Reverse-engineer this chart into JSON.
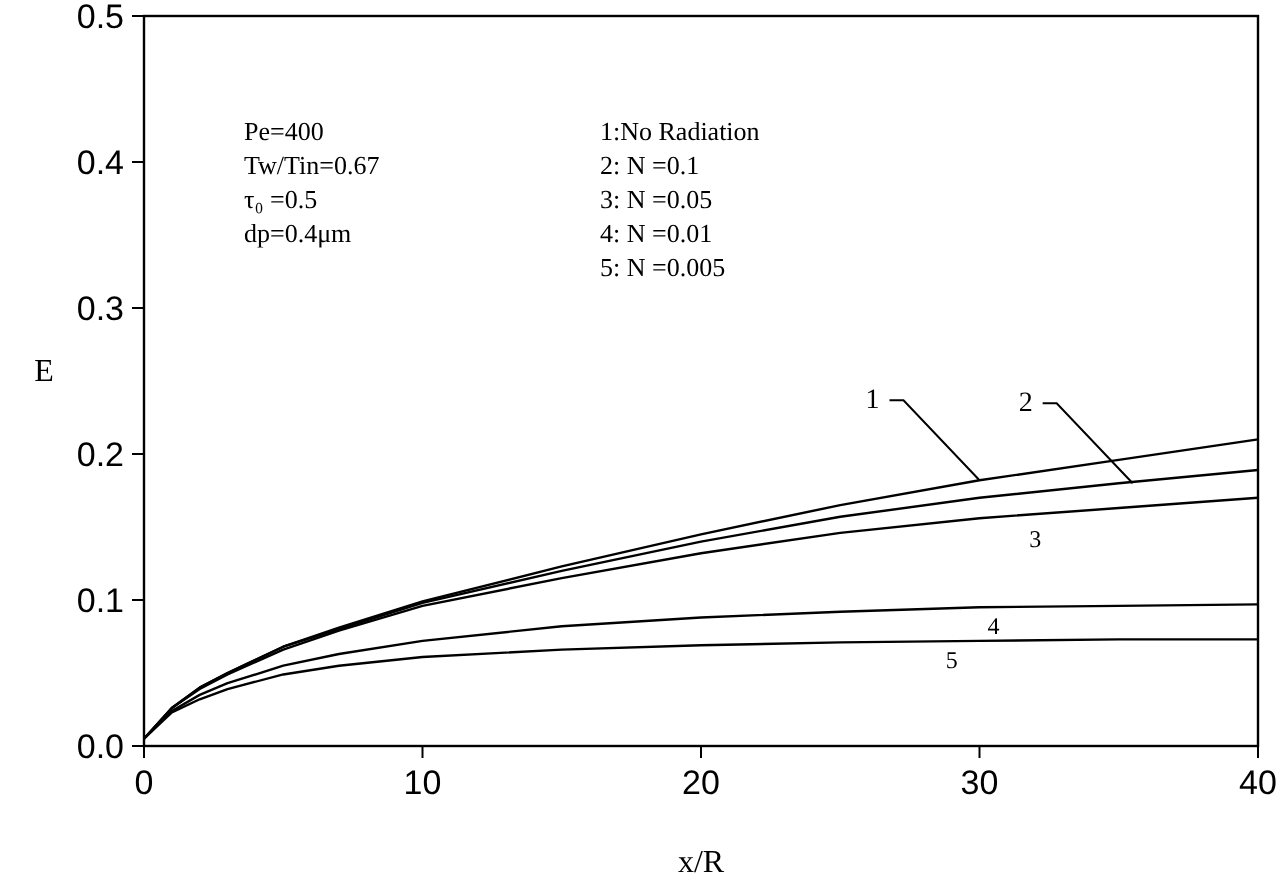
{
  "chart_data": {
    "type": "line",
    "xlabel": "x/R",
    "ylabel": "E",
    "xlim": [
      0,
      40
    ],
    "xticks": [
      0,
      10,
      20,
      30,
      40
    ],
    "ylim": [
      0,
      0.5
    ],
    "yticks": [
      {
        "value": 0,
        "label": "0.0"
      },
      {
        "value": 0.1,
        "label": "0.1"
      },
      {
        "value": 0.2,
        "label": "0.2"
      },
      {
        "value": 0.3,
        "label": "0.3"
      },
      {
        "value": 0.4,
        "label": "0.4"
      },
      {
        "value": 0.5,
        "label": "0.5"
      }
    ],
    "grid": false,
    "marker": "none",
    "line_style": "solid",
    "series": [
      {
        "color": "#000000",
        "x": [
          0,
          1,
          2,
          3,
          5,
          7,
          10,
          15,
          20,
          25,
          30,
          35,
          40
        ],
        "values": [
          0.005,
          0.026,
          0.04,
          0.05,
          0.068,
          0.081,
          0.099,
          0.123,
          0.145,
          0.165,
          0.182,
          0.196,
          0.21
        ]
      },
      {
        "color": "#000000",
        "x": [
          0,
          1,
          2,
          3,
          5,
          7,
          10,
          15,
          20,
          25,
          30,
          35,
          40
        ],
        "values": [
          0.005,
          0.026,
          0.04,
          0.05,
          0.068,
          0.08,
          0.098,
          0.12,
          0.14,
          0.157,
          0.17,
          0.18,
          0.189
        ]
      },
      {
        "color": "#000000",
        "x": [
          0,
          1,
          2,
          3,
          5,
          7,
          10,
          15,
          20,
          25,
          30,
          35,
          40
        ],
        "values": [
          0.005,
          0.026,
          0.039,
          0.049,
          0.066,
          0.079,
          0.096,
          0.115,
          0.132,
          0.146,
          0.156,
          0.163,
          0.17
        ]
      },
      {
        "color": "#000000",
        "x": [
          0,
          1,
          2,
          3,
          5,
          7,
          10,
          15,
          20,
          25,
          30,
          35,
          40
        ],
        "values": [
          0.005,
          0.024,
          0.035,
          0.043,
          0.055,
          0.063,
          0.072,
          0.082,
          0.088,
          0.092,
          0.095,
          0.096,
          0.097
        ]
      },
      {
        "color": "#000000",
        "x": [
          0,
          1,
          2,
          3,
          5,
          7,
          10,
          15,
          20,
          25,
          30,
          35,
          40
        ],
        "values": [
          0.005,
          0.023,
          0.032,
          0.039,
          0.049,
          0.055,
          0.061,
          0.066,
          0.069,
          0.071,
          0.072,
          0.073,
          0.073
        ]
      }
    ],
    "annotations": [
      "Pe=400",
      "Tw/Tin=0.67",
      "τ₀ =0.5",
      "dp=0.4μm",
      "1:No Radiation",
      "2: N =0.1",
      "3: N =0.05",
      "4: N =0.01",
      "5: N =0.005",
      {
        "text": "1",
        "x": 30,
        "y": 0.182
      },
      {
        "text": "2",
        "x": 35.5,
        "y": 0.18
      },
      {
        "text": "3",
        "x": 32,
        "y": 0.155
      },
      {
        "text": "4",
        "x": 30.5,
        "y": 0.095
      },
      {
        "text": "5",
        "x": 29,
        "y": 0.072
      }
    ]
  }
}
